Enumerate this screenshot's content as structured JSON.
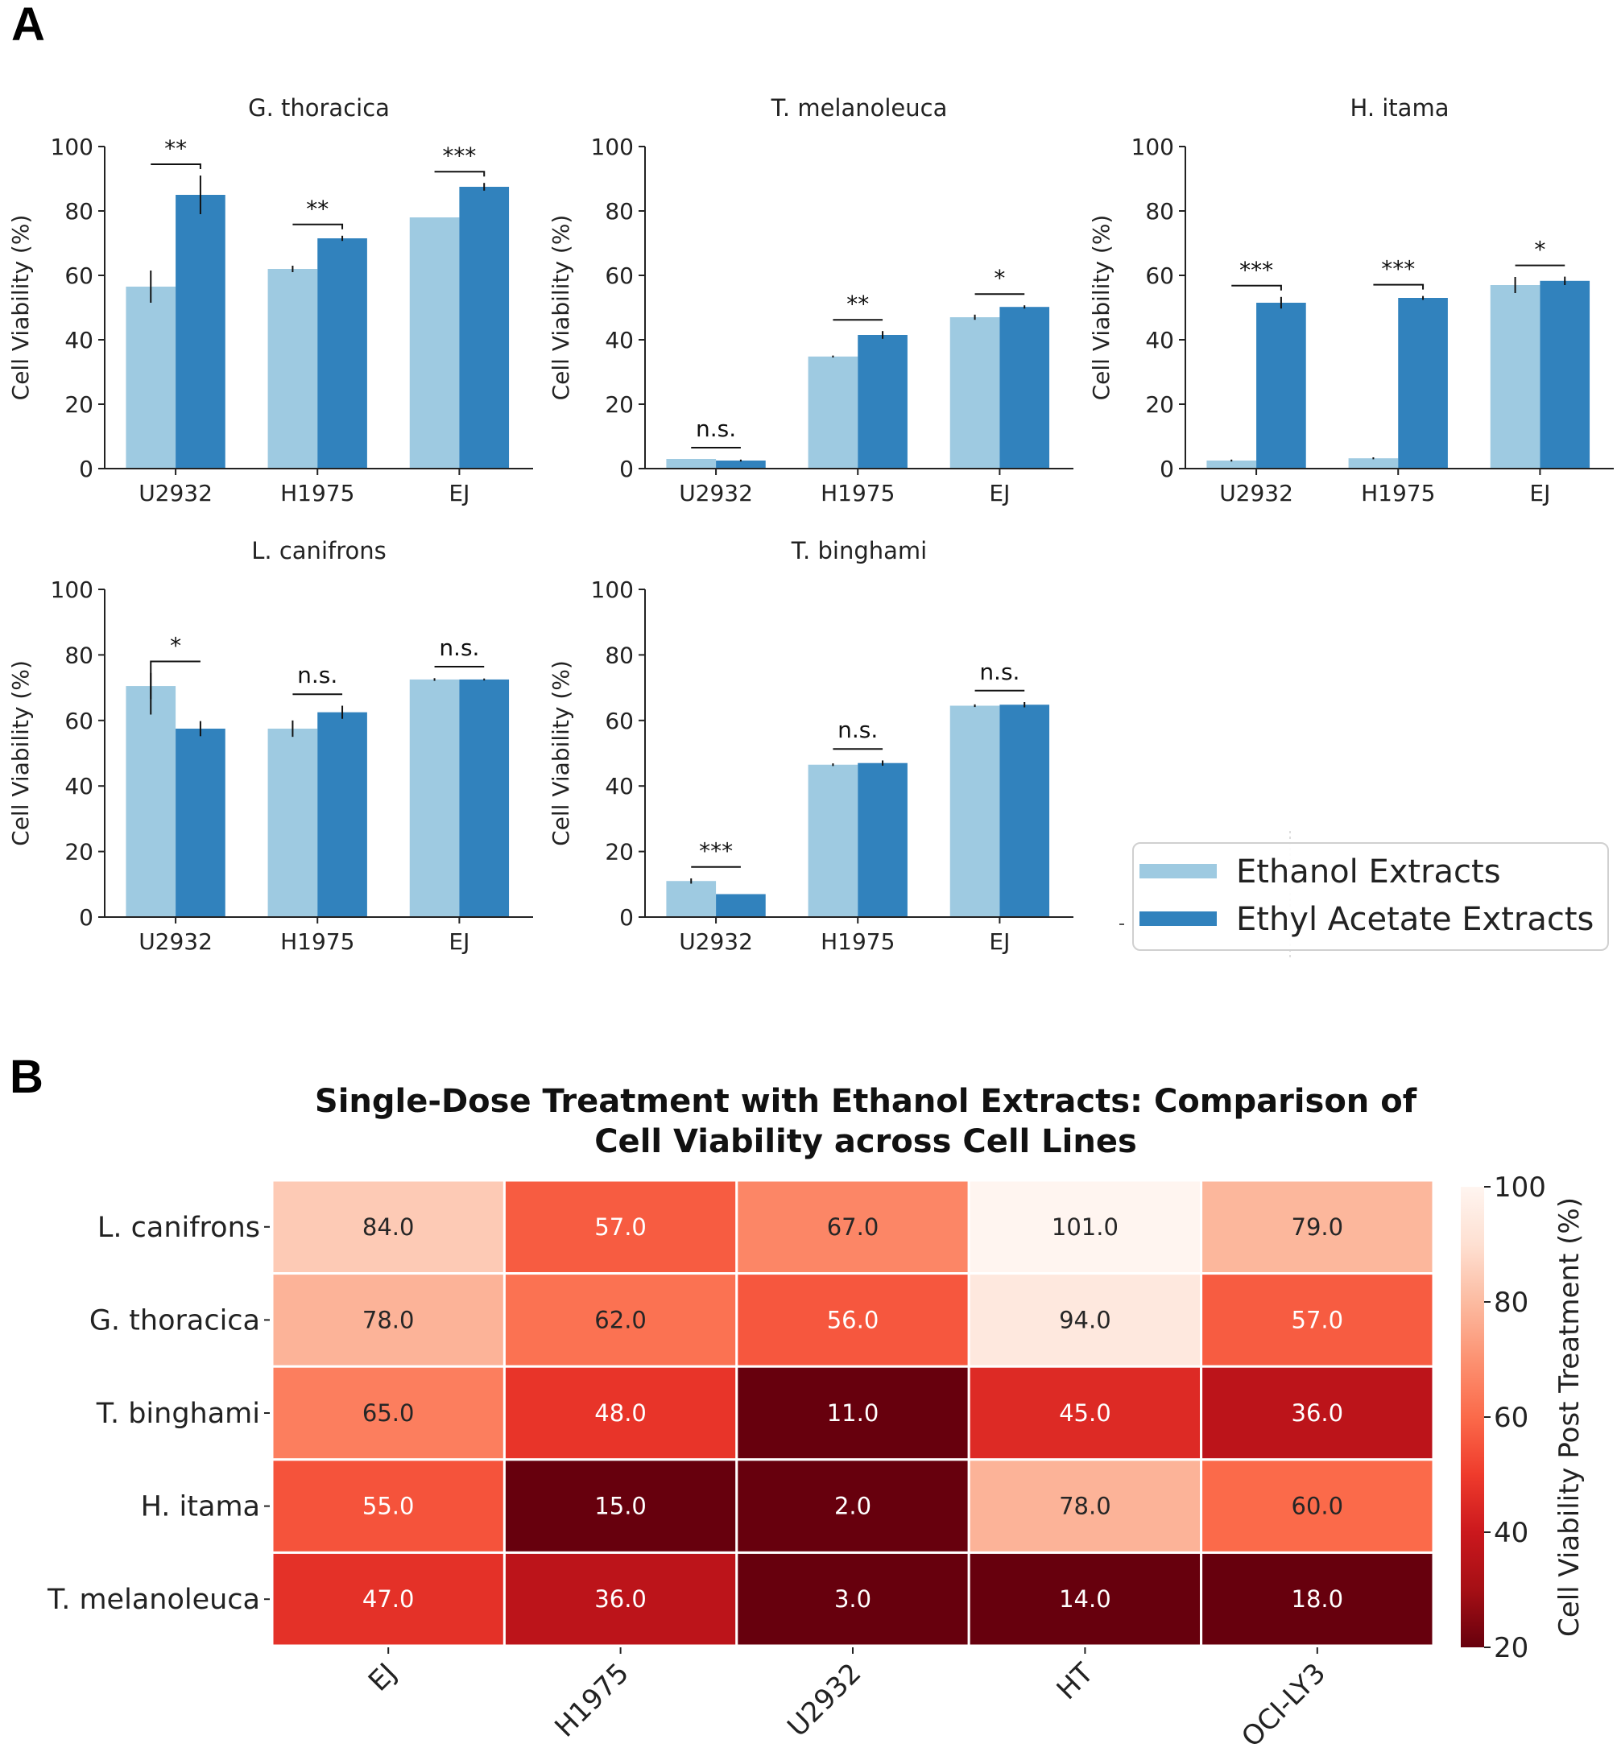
{
  "panels": {
    "a_label": "A",
    "b_label": "B"
  },
  "colors": {
    "ethanol": "#9ecae1",
    "ethyl_acetate": "#3182bd"
  },
  "legend": {
    "ethanol": "Ethanol Extracts",
    "ethyl_acetate": "Ethyl Acetate Extracts"
  },
  "chart_data": [
    {
      "type": "bar",
      "title": "G. thoracica",
      "categories": [
        "U2932",
        "H1975",
        "EJ"
      ],
      "series": [
        {
          "name": "Ethanol Extracts",
          "values": [
            56.5,
            62.0,
            78.0
          ],
          "errors": [
            5.0,
            1.0,
            0.0
          ]
        },
        {
          "name": "Ethyl Acetate Extracts",
          "values": [
            85.0,
            71.5,
            87.5
          ],
          "errors": [
            6.0,
            0.8,
            1.2
          ]
        }
      ],
      "significance": [
        "**",
        "**",
        "***"
      ],
      "ylabel": "Cell Viability (%)",
      "ylim": [
        0,
        100
      ],
      "yticks": [
        0,
        20,
        40,
        60,
        80,
        100
      ]
    },
    {
      "type": "bar",
      "title": "T. melanoleuca",
      "categories": [
        "U2932",
        "H1975",
        "EJ"
      ],
      "series": [
        {
          "name": "Ethanol Extracts",
          "values": [
            3.0,
            34.8,
            47.0
          ],
          "errors": [
            0.0,
            0.3,
            0.8
          ]
        },
        {
          "name": "Ethyl Acetate Extracts",
          "values": [
            2.5,
            41.5,
            50.2
          ],
          "errors": [
            0.3,
            1.2,
            0.5
          ]
        }
      ],
      "significance": [
        "n.s.",
        "**",
        "*"
      ],
      "ylabel": "Cell Viability (%)",
      "ylim": [
        0,
        100
      ],
      "yticks": [
        0,
        20,
        40,
        60,
        80,
        100
      ]
    },
    {
      "type": "bar",
      "title": "H. itama",
      "categories": [
        "U2932",
        "H1975",
        "EJ"
      ],
      "series": [
        {
          "name": "Ethanol Extracts",
          "values": [
            2.5,
            3.2,
            57.0
          ],
          "errors": [
            0.3,
            0.3,
            2.5
          ]
        },
        {
          "name": "Ethyl Acetate Extracts",
          "values": [
            51.5,
            53.0,
            58.3
          ],
          "errors": [
            1.8,
            0.6,
            1.3
          ]
        }
      ],
      "significance": [
        "***",
        "***",
        "*"
      ],
      "ylabel": "Cell Viability (%)",
      "ylim": [
        0,
        100
      ],
      "yticks": [
        0,
        20,
        40,
        60,
        80,
        100
      ]
    },
    {
      "type": "bar",
      "title": "L. canifrons",
      "categories": [
        "U2932",
        "H1975",
        "EJ"
      ],
      "series": [
        {
          "name": "Ethanol Extracts",
          "values": [
            70.5,
            57.5,
            72.5
          ],
          "errors": [
            4.0,
            2.5,
            0.4
          ]
        },
        {
          "name": "Ethyl Acetate Extracts",
          "values": [
            57.5,
            62.5,
            72.5
          ],
          "errors": [
            2.3,
            2.0,
            0.3
          ]
        }
      ],
      "significance": [
        "*",
        "n.s.",
        "n.s."
      ],
      "ylabel": "Cell Viability (%)",
      "ylim": [
        0,
        100
      ],
      "yticks": [
        0,
        20,
        40,
        60,
        80,
        100
      ]
    },
    {
      "type": "bar",
      "title": "T. binghami",
      "categories": [
        "U2932",
        "H1975",
        "EJ"
      ],
      "series": [
        {
          "name": "Ethanol Extracts",
          "values": [
            11.0,
            46.5,
            64.5
          ],
          "errors": [
            0.8,
            0.4,
            0.4
          ]
        },
        {
          "name": "Ethyl Acetate Extracts",
          "values": [
            7.0,
            47.0,
            64.8
          ],
          "errors": [
            0.0,
            0.8,
            0.8
          ]
        }
      ],
      "significance": [
        "***",
        "n.s.",
        "n.s."
      ],
      "ylabel": "Cell Viability (%)",
      "ylim": [
        0,
        100
      ],
      "yticks": [
        0,
        20,
        40,
        60,
        80,
        100
      ]
    },
    {
      "type": "heatmap",
      "title_lines": [
        "Single-Dose Treatment with Ethanol Extracts: Comparison of",
        "Cell Viability across Cell Lines"
      ],
      "rows": [
        "L. canifrons",
        "G. thoracica",
        "T. binghami",
        "H. itama",
        "T. melanoleuca"
      ],
      "columns": [
        "EJ",
        "H1975",
        "U2932",
        "HT",
        "OCI-LY3"
      ],
      "values": [
        [
          84.0,
          57.0,
          67.0,
          101.0,
          79.0
        ],
        [
          78.0,
          62.0,
          56.0,
          94.0,
          57.0
        ],
        [
          65.0,
          48.0,
          11.0,
          45.0,
          36.0
        ],
        [
          55.0,
          15.0,
          2.0,
          78.0,
          60.0
        ],
        [
          47.0,
          36.0,
          3.0,
          14.0,
          18.0
        ]
      ],
      "value_labels": [
        [
          "84.0",
          "57.0",
          "67.0",
          "101.0",
          "79.0"
        ],
        [
          "78.0",
          "62.0",
          "56.0",
          "94.0",
          "57.0"
        ],
        [
          "65.0",
          "48.0",
          "11.0",
          "45.0",
          "36.0"
        ],
        [
          "55.0",
          "15.0",
          "2.0",
          "78.0",
          "60.0"
        ],
        [
          "47.0",
          "36.0",
          "3.0",
          "14.0",
          "18.0"
        ]
      ],
      "colorbar": {
        "label": "Cell Viability Post Treatment (%)",
        "vmin": 20,
        "vmax": 100,
        "ticks": [
          20,
          40,
          60,
          80,
          100
        ],
        "colormap": "Reds_r"
      }
    }
  ]
}
